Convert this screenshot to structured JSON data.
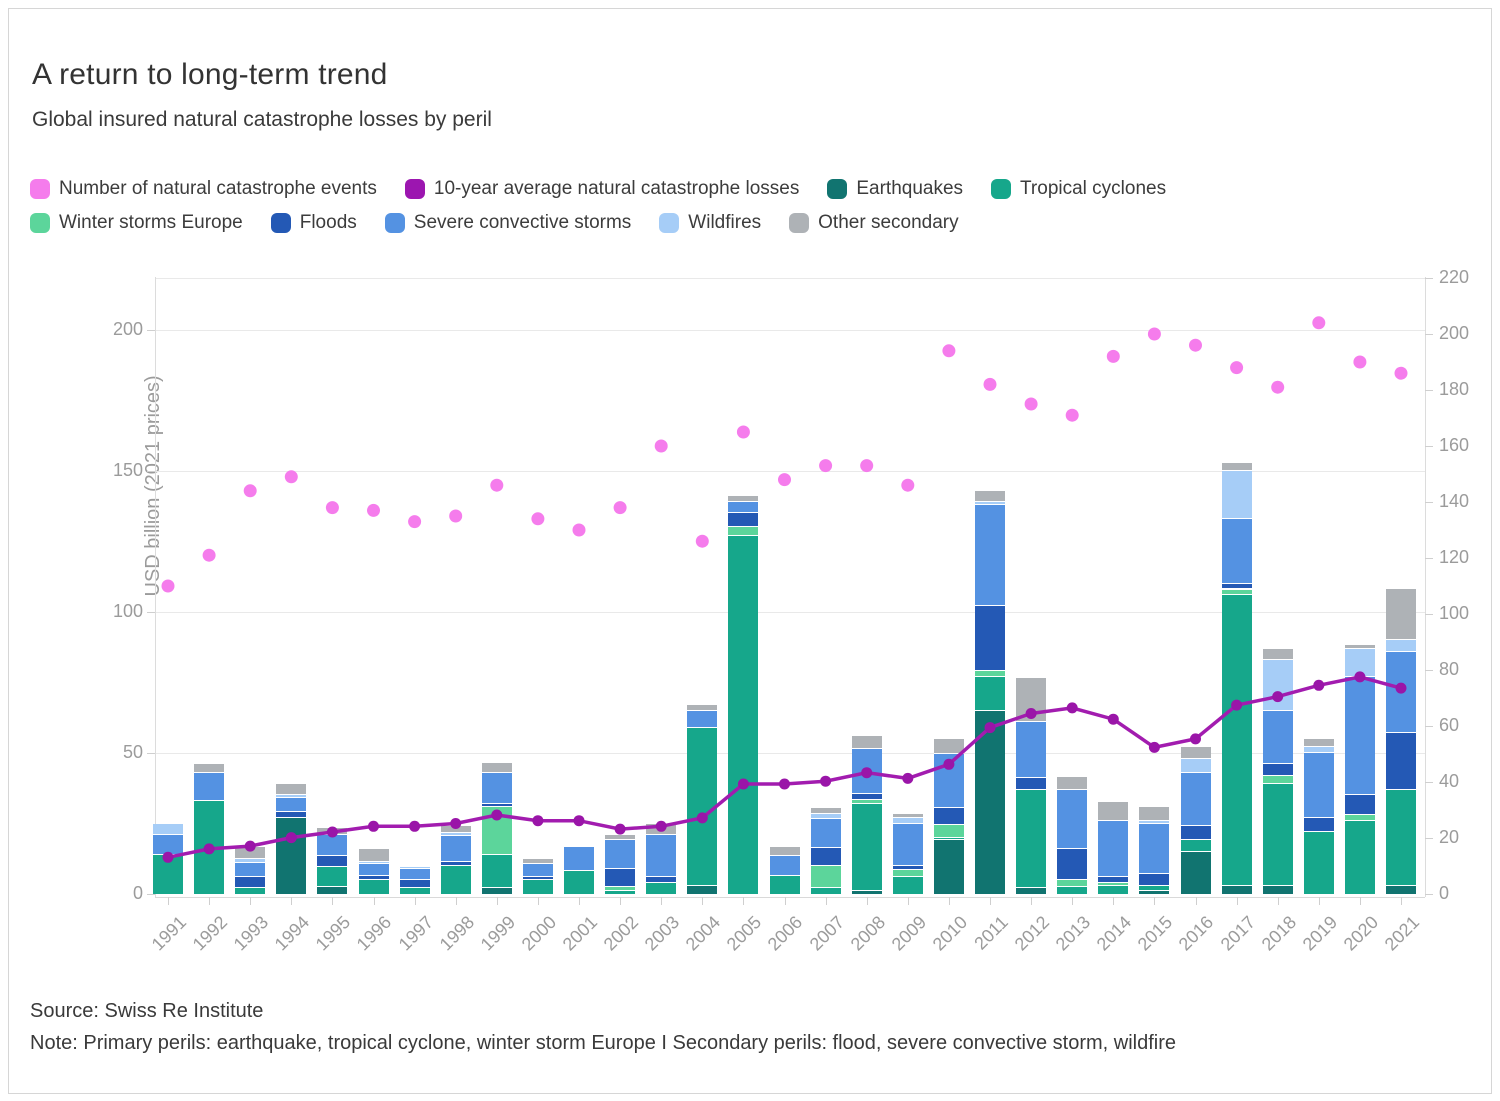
{
  "header": {
    "title": "A return to long-term trend",
    "subtitle": "Global insured natural catastrophe losses by peril"
  },
  "footer": {
    "source": "Source: Swiss Re Institute",
    "note": "Note: Primary perils: earthquake, tropical cyclone, winter storm Europe I Secondary perils: flood, severe convective storm, wildfire"
  },
  "axes": {
    "left_label": "USD billion (2021 prices)",
    "left_ticks": [
      0,
      50,
      100,
      150,
      200
    ],
    "right_ticks": [
      0,
      20,
      40,
      60,
      80,
      100,
      120,
      140,
      160,
      180,
      200,
      220
    ]
  },
  "colors": {
    "events": "#F57CEC",
    "average": "#A21CAF",
    "earthquakes": "#117470",
    "tropical_cyclones": "#16A78B",
    "winter_storms": "#5CD59B",
    "floods": "#2459B5",
    "scs": "#5492E2",
    "wildfires": "#A6CDF7",
    "other": "#AEB2B6"
  },
  "legend": {
    "row1": [
      {
        "label": "Number of natural catastrophe events",
        "color": "#F57CEC"
      },
      {
        "label": "10-year average natural catastrophe losses",
        "color": "#9C16B0"
      },
      {
        "label": "Earthquakes",
        "color": "#117470"
      },
      {
        "label": "Tropical cyclones",
        "color": "#16A78B"
      }
    ],
    "row2": [
      {
        "label": "Winter storms Europe",
        "color": "#5CD59B"
      },
      {
        "label": "Floods",
        "color": "#2459B5"
      },
      {
        "label": "Severe convective storms",
        "color": "#5492E2"
      },
      {
        "label": "Wildfires",
        "color": "#A6CDF7"
      },
      {
        "label": "Other secondary",
        "color": "#AEB2B6"
      }
    ]
  },
  "chart_data": {
    "type": "bar",
    "subtype": "stacked-bar + scatter + line (dual axis)",
    "title": "A return to long-term trend",
    "xlabel": "",
    "ylabel": "USD billion (2021 prices)",
    "ylim_left": [
      0,
      220
    ],
    "ylim_right": [
      0,
      220
    ],
    "legend_position": "top",
    "grid": true,
    "categories": [
      1991,
      1992,
      1993,
      1994,
      1995,
      1996,
      1997,
      1998,
      1999,
      2000,
      2001,
      2002,
      2003,
      2004,
      2005,
      2006,
      2007,
      2008,
      2009,
      2010,
      2011,
      2012,
      2013,
      2014,
      2015,
      2016,
      2017,
      2018,
      2019,
      2020,
      2021
    ],
    "series": [
      {
        "name": "Earthquakes",
        "type": "bar",
        "axis": "left",
        "color": "#117470",
        "values": [
          0,
          0,
          0,
          27,
          2.5,
          0,
          0,
          0,
          2,
          0,
          0,
          0,
          0,
          3,
          0,
          0,
          0,
          1,
          0,
          19,
          65,
          2,
          0,
          0,
          1,
          15,
          3,
          3,
          0,
          0,
          3
        ]
      },
      {
        "name": "Tropical cyclones",
        "type": "bar",
        "axis": "left",
        "color": "#16A78B",
        "values": [
          14,
          33,
          2,
          0,
          7,
          5,
          2,
          10,
          12,
          5,
          8,
          1,
          4,
          56,
          127,
          6.5,
          2,
          31,
          6,
          1,
          12,
          35,
          2.5,
          3,
          2,
          4,
          103,
          36,
          22,
          26,
          34
        ]
      },
      {
        "name": "Winter storms Europe",
        "type": "bar",
        "axis": "left",
        "color": "#5CD59B",
        "values": [
          0,
          0,
          0,
          0,
          0,
          0,
          0,
          0,
          17,
          0,
          0,
          1.5,
          0,
          0,
          3,
          0,
          8,
          1.5,
          2.5,
          4.5,
          2,
          0,
          2.5,
          1,
          0,
          0,
          2,
          3,
          0,
          2,
          0
        ]
      },
      {
        "name": "Floods",
        "type": "bar",
        "axis": "left",
        "color": "#2459B5",
        "values": [
          0,
          0,
          4,
          2,
          4,
          1.5,
          3,
          1.5,
          1,
          1,
          0,
          6.5,
          2,
          0,
          5,
          0,
          6.5,
          2,
          1.5,
          6,
          23,
          4,
          11,
          2,
          4,
          5,
          2,
          4,
          5,
          7,
          20
        ]
      },
      {
        "name": "Severe convective storms",
        "type": "bar",
        "axis": "left",
        "color": "#5492E2",
        "values": [
          7,
          10,
          5,
          5,
          7.5,
          4,
          4,
          9,
          11,
          4.5,
          8.5,
          10,
          15,
          6,
          4,
          7,
          10,
          16,
          15,
          19,
          36,
          20,
          21,
          20,
          18,
          19,
          23,
          19,
          23,
          42,
          29
        ]
      },
      {
        "name": "Wildfires",
        "type": "bar",
        "axis": "left",
        "color": "#A6CDF7",
        "values": [
          4,
          0,
          1.5,
          1,
          0,
          1,
          0.5,
          1,
          0,
          0,
          0,
          0,
          0,
          0,
          0,
          0,
          2,
          0,
          2,
          0,
          1,
          0,
          0,
          0,
          1,
          5,
          17,
          18,
          2,
          10,
          4
        ]
      },
      {
        "name": "Other secondary",
        "type": "bar",
        "axis": "left",
        "color": "#AEB2B6",
        "values": [
          0,
          3,
          4,
          4,
          2.5,
          4.5,
          0,
          2.5,
          3.5,
          2,
          0,
          2,
          4,
          2,
          2,
          3,
          2,
          4.5,
          1.5,
          5.5,
          4,
          15.5,
          4.5,
          6.5,
          5,
          4,
          3,
          4,
          3,
          1.5,
          18
        ]
      },
      {
        "name": "Number of natural catastrophe events",
        "type": "scatter",
        "axis": "right",
        "color": "#F57CEC",
        "values": [
          110,
          121,
          144,
          149,
          138,
          137,
          133,
          135,
          146,
          134,
          130,
          138,
          160,
          126,
          165,
          148,
          153,
          153,
          146,
          194,
          182,
          175,
          171,
          192,
          200,
          196,
          188,
          181,
          204,
          190,
          186
        ]
      },
      {
        "name": "10-year average natural catastrophe losses",
        "type": "line",
        "axis": "left",
        "color": "#A21CAF",
        "values": [
          13,
          16,
          17,
          20,
          22,
          24,
          24,
          25,
          28,
          26,
          26,
          23,
          24,
          27,
          39,
          39,
          40,
          43,
          41,
          46,
          59,
          64,
          66,
          62,
          52,
          55,
          67,
          70,
          74,
          77,
          73
        ]
      }
    ]
  }
}
